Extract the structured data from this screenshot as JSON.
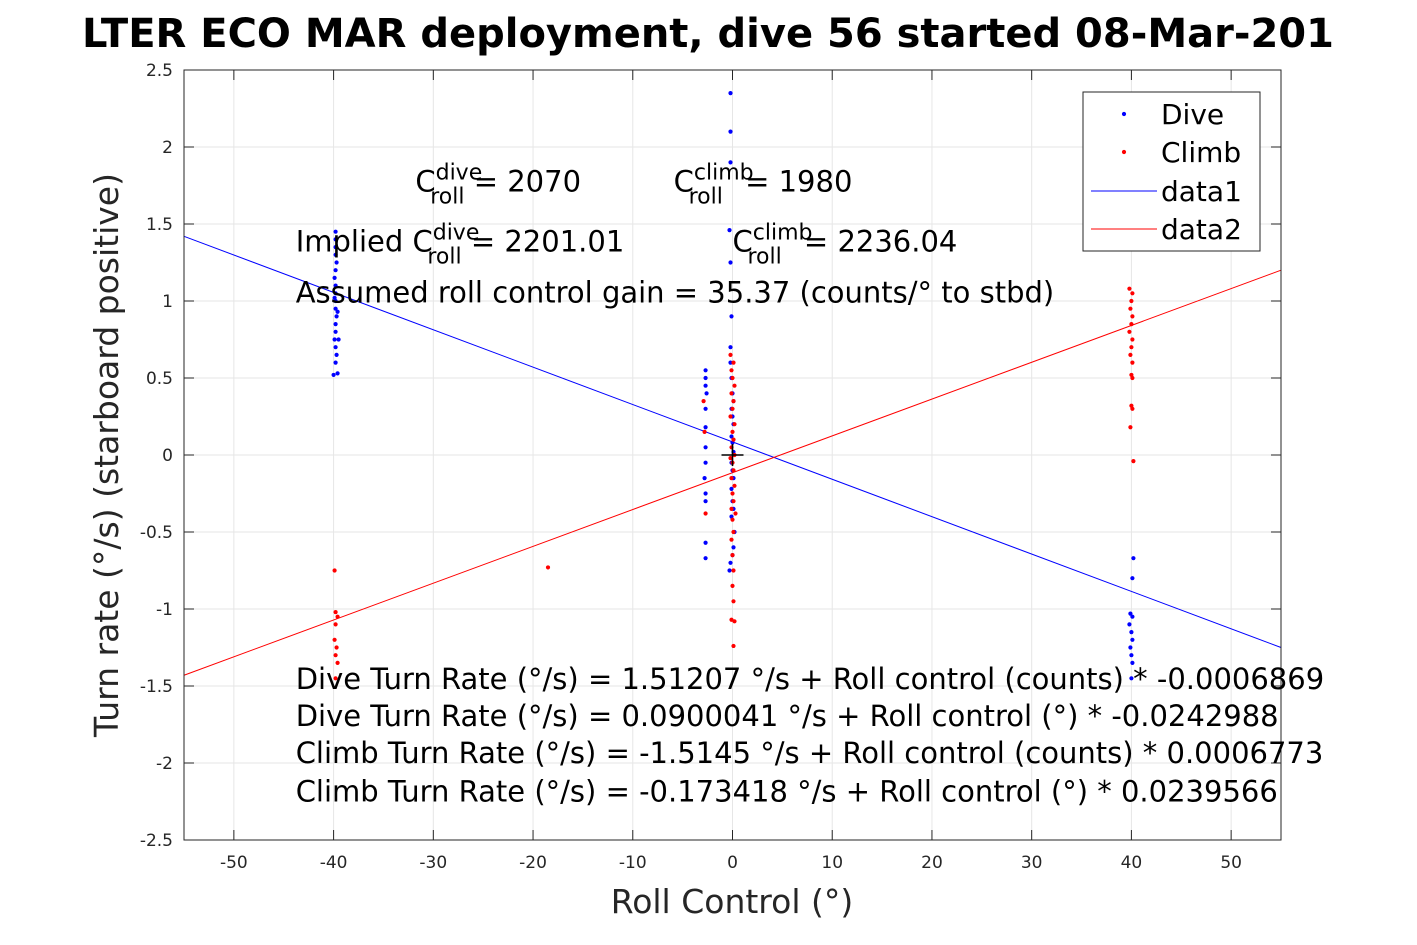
{
  "chart_data": {
    "type": "scatter",
    "title": "LTER ECO MAR deployment, dive 56 started 08-Mar-201",
    "xlabel": "Roll Control (°)",
    "ylabel": "Turn rate (°/s) (starboard positive)",
    "xlim": [
      -55,
      55
    ],
    "ylim": [
      -2.5,
      2.5
    ],
    "xticks": [
      -50,
      -40,
      -30,
      -20,
      -10,
      0,
      10,
      20,
      30,
      40,
      50
    ],
    "yticks": [
      -2.5,
      -2,
      -1.5,
      -1,
      -0.5,
      0,
      0.5,
      1,
      1.5,
      2,
      2.5
    ],
    "xtick_labels": [
      "-50",
      "-40",
      "-30",
      "-20",
      "-10",
      "0",
      "10",
      "20",
      "30",
      "40",
      "50"
    ],
    "ytick_labels": [
      "-2.5",
      "-2",
      "-1.5",
      "-1",
      "-0.5",
      "0",
      "0.5",
      "1",
      "1.5",
      "2",
      "2.5"
    ],
    "grid": true,
    "legend_position": "top-right",
    "colors": {
      "dive": "#0000ff",
      "climb": "#ff0000",
      "origin": "#000000"
    },
    "series": [
      {
        "name": "Dive",
        "kind": "points",
        "color": "#0000ff",
        "points": [
          [
            -39.8,
            1.45
          ],
          [
            -39.8,
            1.4
          ],
          [
            -39.8,
            1.35
          ],
          [
            -39.8,
            1.3
          ],
          [
            -39.7,
            1.25
          ],
          [
            -39.8,
            1.2
          ],
          [
            -39.9,
            1.15
          ],
          [
            -39.8,
            1.1
          ],
          [
            -39.8,
            1.05
          ],
          [
            -39.8,
            1.0
          ],
          [
            -39.8,
            0.95
          ],
          [
            -39.7,
            0.9
          ],
          [
            -39.8,
            0.85
          ],
          [
            -39.8,
            0.8
          ],
          [
            -39.9,
            0.75
          ],
          [
            -39.8,
            0.7
          ],
          [
            -39.7,
            0.65
          ],
          [
            -39.8,
            0.6
          ],
          [
            -40.0,
            0.52
          ],
          [
            -39.6,
            0.53
          ],
          [
            -39.5,
            0.75
          ],
          [
            -39.9,
            1.02
          ],
          [
            -39.6,
            0.93
          ],
          [
            -2.7,
            0.55
          ],
          [
            -2.7,
            0.5
          ],
          [
            -2.7,
            0.45
          ],
          [
            -2.6,
            0.4
          ],
          [
            -2.7,
            0.3
          ],
          [
            -2.7,
            0.18
          ],
          [
            -2.7,
            0.05
          ],
          [
            -2.7,
            -0.05
          ],
          [
            -2.8,
            -0.15
          ],
          [
            -2.7,
            -0.25
          ],
          [
            -2.7,
            -0.3
          ],
          [
            -2.7,
            -0.57
          ],
          [
            -2.7,
            -0.67
          ],
          [
            -0.2,
            2.35
          ],
          [
            -0.2,
            2.1
          ],
          [
            -0.2,
            1.9
          ],
          [
            -0.3,
            1.46
          ],
          [
            -0.2,
            1.25
          ],
          [
            -0.1,
            0.9
          ],
          [
            -0.2,
            0.7
          ],
          [
            -0.2,
            0.6
          ],
          [
            -0.1,
            0.5
          ],
          [
            0.0,
            0.4
          ],
          [
            0.1,
            0.35
          ],
          [
            -0.1,
            0.3
          ],
          [
            0.0,
            0.25
          ],
          [
            0.1,
            0.2
          ],
          [
            -0.1,
            0.12
          ],
          [
            0.0,
            0.08
          ],
          [
            0.1,
            0.02
          ],
          [
            -0.1,
            -0.05
          ],
          [
            0.0,
            -0.1
          ],
          [
            0.1,
            -0.15
          ],
          [
            -0.1,
            -0.22
          ],
          [
            0.0,
            -0.3
          ],
          [
            0.1,
            -0.35
          ],
          [
            -0.1,
            -0.4
          ],
          [
            0.2,
            -0.5
          ],
          [
            0.1,
            -0.6
          ],
          [
            0.0,
            -0.65
          ],
          [
            -0.2,
            -0.7
          ],
          [
            -0.3,
            -0.75
          ],
          [
            40.2,
            -0.67
          ],
          [
            40.1,
            -0.8
          ],
          [
            39.9,
            -1.03
          ],
          [
            40.1,
            -1.05
          ],
          [
            39.8,
            -1.1
          ],
          [
            40.0,
            -1.15
          ],
          [
            40.1,
            -1.2
          ],
          [
            39.9,
            -1.25
          ],
          [
            40.0,
            -1.3
          ],
          [
            40.1,
            -1.35
          ],
          [
            40.0,
            -1.45
          ]
        ]
      },
      {
        "name": "Climb",
        "kind": "points",
        "color": "#ff0000",
        "points": [
          [
            -39.9,
            -0.75
          ],
          [
            -39.8,
            -1.02
          ],
          [
            -39.6,
            -1.05
          ],
          [
            -39.8,
            -1.1
          ],
          [
            -39.9,
            -1.2
          ],
          [
            -39.7,
            -1.25
          ],
          [
            -39.8,
            -1.3
          ],
          [
            -39.6,
            -1.35
          ],
          [
            -39.8,
            -1.45
          ],
          [
            -18.5,
            -0.73
          ],
          [
            -2.9,
            0.35
          ],
          [
            -2.8,
            0.15
          ],
          [
            -2.7,
            -0.38
          ],
          [
            -0.2,
            0.65
          ],
          [
            0.1,
            0.6
          ],
          [
            -0.1,
            0.55
          ],
          [
            0.0,
            0.5
          ],
          [
            0.2,
            0.45
          ],
          [
            -0.1,
            0.4
          ],
          [
            0.1,
            0.35
          ],
          [
            0.0,
            0.3
          ],
          [
            -0.2,
            0.25
          ],
          [
            0.2,
            0.2
          ],
          [
            0.0,
            0.15
          ],
          [
            0.1,
            0.1
          ],
          [
            -0.1,
            0.05
          ],
          [
            0.2,
            0.0
          ],
          [
            -0.2,
            -0.02
          ],
          [
            0.0,
            -0.05
          ],
          [
            0.1,
            -0.1
          ],
          [
            -0.1,
            -0.15
          ],
          [
            0.2,
            -0.2
          ],
          [
            0.0,
            -0.25
          ],
          [
            0.1,
            -0.3
          ],
          [
            -0.1,
            -0.35
          ],
          [
            0.3,
            -0.38
          ],
          [
            0.0,
            -0.42
          ],
          [
            0.1,
            -0.5
          ],
          [
            -0.1,
            -0.55
          ],
          [
            0.0,
            -0.65
          ],
          [
            0.1,
            -0.75
          ],
          [
            0.0,
            -0.85
          ],
          [
            0.1,
            -0.95
          ],
          [
            -0.1,
            -1.07
          ],
          [
            0.2,
            -1.08
          ],
          [
            0.1,
            -1.24
          ],
          [
            39.8,
            1.08
          ],
          [
            40.1,
            1.05
          ],
          [
            40.0,
            1.0
          ],
          [
            39.9,
            0.95
          ],
          [
            40.1,
            0.9
          ],
          [
            40.0,
            0.85
          ],
          [
            39.8,
            0.8
          ],
          [
            40.1,
            0.75
          ],
          [
            40.0,
            0.7
          ],
          [
            39.9,
            0.65
          ],
          [
            40.1,
            0.6
          ],
          [
            40.0,
            0.52
          ],
          [
            40.1,
            0.5
          ],
          [
            40.0,
            0.32
          ],
          [
            40.1,
            0.3
          ],
          [
            39.9,
            0.18
          ],
          [
            40.2,
            -0.04
          ]
        ]
      },
      {
        "name": "data1",
        "kind": "line",
        "color": "#0000ff",
        "points": [
          [
            -55,
            1.42
          ],
          [
            55,
            -1.25
          ]
        ]
      },
      {
        "name": "data2",
        "kind": "line",
        "color": "#ff0000",
        "points": [
          [
            -55,
            -1.43
          ],
          [
            55,
            1.2
          ]
        ]
      }
    ],
    "origin_marker": {
      "x": 0,
      "y": 0,
      "symbol": "+"
    },
    "annotations": [
      {
        "key": "c_roll_dive",
        "prefix": "C",
        "sup": "dive",
        "sub": "roll",
        "suffix": " = 2070",
        "x": -31.8,
        "y": 1.71
      },
      {
        "key": "c_roll_climb",
        "prefix": "C",
        "sup": "climb",
        "sub": "roll",
        "suffix": " = 1980",
        "x": -5.9,
        "y": 1.71
      },
      {
        "key": "implied_dive",
        "prefix": "Implied C",
        "sup": "dive",
        "sub": "roll",
        "suffix": " = 2201.01",
        "x": -43.8,
        "y": 1.32
      },
      {
        "key": "implied_climb",
        "prefix": "C",
        "sup": "climb",
        "sub": "roll",
        "suffix": " = 2236.04",
        "x": 0.0,
        "y": 1.32
      },
      {
        "key": "gain",
        "text": "Assumed roll control gain = 35.37 (counts/° to stbd)",
        "x": -43.8,
        "y": 0.99
      },
      {
        "key": "dive_counts",
        "text": "Dive Turn Rate (°/s) = 1.51207 °/s + Roll control (counts) * -0.0006869",
        "x": -43.8,
        "y": -1.52
      },
      {
        "key": "dive_deg",
        "text": "Dive Turn Rate (°/s) = 0.0900041 °/s + Roll control (°) * -0.0242988",
        "x": -43.8,
        "y": -1.76
      },
      {
        "key": "climb_counts",
        "text": "Climb Turn Rate (°/s) = -1.5145 °/s + Roll control (counts) * 0.0006773",
        "x": -43.8,
        "y": -2.0
      },
      {
        "key": "climb_deg",
        "text": "Climb Turn Rate (°/s) = -0.173418 °/s + Roll control (°) * 0.0239566",
        "x": -43.8,
        "y": -2.25
      }
    ]
  }
}
